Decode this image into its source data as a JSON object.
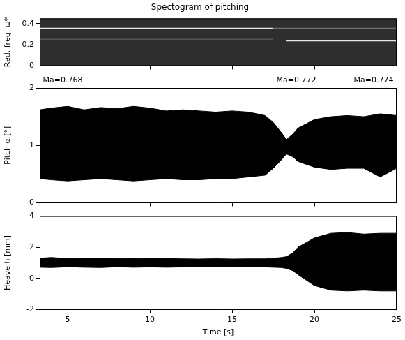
{
  "chart_data": [
    {
      "type": "line",
      "title": "Spectogram of pitching",
      "ylabel": "Red. freq. ω*",
      "x": [
        3.3,
        17.5,
        18.3,
        25
      ],
      "series": [
        {
          "color": "#e6e6e6",
          "values": [
            0.355,
            0.355,
            null,
            null
          ]
        },
        {
          "color": "#6e6e6e",
          "values": [
            null,
            0.355,
            0.355,
            0.355
          ]
        },
        {
          "color": "#555555",
          "values": [
            0.25,
            0.25,
            null,
            null
          ]
        },
        {
          "color": "#e6e6e6",
          "values": [
            null,
            null,
            0.24,
            0.24
          ]
        }
      ],
      "xlim": [
        3.3,
        25
      ],
      "xticks": [
        5,
        10,
        15,
        20,
        25
      ],
      "ylim": [
        0,
        0.45
      ],
      "yticks": [
        0,
        0.2,
        0.4
      ],
      "grid": false,
      "tick_labels": "y"
    },
    {
      "type": "band",
      "ylabel": "Pitch α [°]",
      "annotations": [
        {
          "text": "Ma=0.768",
          "x": 4.7
        },
        {
          "text": "Ma=0.772",
          "x": 18.9
        },
        {
          "text": "Ma=0.774",
          "x": 23.6
        }
      ],
      "x": [
        3.3,
        4,
        5,
        6,
        7,
        8,
        9,
        10,
        11,
        12,
        13,
        14,
        15,
        16,
        17,
        17.5,
        18,
        18.3,
        18.7,
        19,
        20,
        21,
        22,
        23,
        24,
        25
      ],
      "series": [
        {
          "color": "#000000",
          "lower": [
            0.42,
            0.4,
            0.38,
            0.4,
            0.42,
            0.4,
            0.38,
            0.4,
            0.42,
            0.4,
            0.4,
            0.42,
            0.42,
            0.45,
            0.48,
            0.6,
            0.75,
            0.85,
            0.8,
            0.72,
            0.62,
            0.58,
            0.6,
            0.6,
            0.45,
            0.6
          ],
          "upper": [
            1.62,
            1.65,
            1.68,
            1.62,
            1.66,
            1.64,
            1.68,
            1.65,
            1.6,
            1.62,
            1.6,
            1.58,
            1.6,
            1.58,
            1.52,
            1.4,
            1.22,
            1.1,
            1.2,
            1.3,
            1.45,
            1.5,
            1.52,
            1.5,
            1.55,
            1.52
          ]
        }
      ],
      "xlim": [
        3.3,
        25
      ],
      "xticks": [
        5,
        10,
        15,
        20,
        25
      ],
      "ylim": [
        0,
        2
      ],
      "yticks": [
        0,
        1,
        2
      ],
      "grid": false,
      "tick_labels": "y"
    },
    {
      "type": "band",
      "xlabel": "Time [s]",
      "ylabel": "Heave h [mm]",
      "x": [
        3.3,
        4,
        5,
        6,
        7,
        8,
        9,
        10,
        11,
        12,
        13,
        14,
        15,
        16,
        17,
        17.5,
        18,
        18.3,
        18.7,
        19,
        20,
        21,
        22,
        23,
        24,
        25
      ],
      "series": [
        {
          "color": "#000000",
          "lower": [
            0.72,
            0.7,
            0.75,
            0.72,
            0.7,
            0.75,
            0.72,
            0.74,
            0.72,
            0.74,
            0.76,
            0.74,
            0.75,
            0.76,
            0.74,
            0.72,
            0.7,
            0.65,
            0.5,
            0.25,
            -0.45,
            -0.75,
            -0.8,
            -0.75,
            -0.8,
            -0.8
          ],
          "upper": [
            1.3,
            1.35,
            1.28,
            1.3,
            1.32,
            1.28,
            1.3,
            1.27,
            1.28,
            1.26,
            1.25,
            1.27,
            1.25,
            1.26,
            1.26,
            1.3,
            1.35,
            1.4,
            1.65,
            2.0,
            2.6,
            2.9,
            2.95,
            2.85,
            2.9,
            2.9
          ]
        }
      ],
      "xlim": [
        3.3,
        25
      ],
      "xticks": [
        5,
        10,
        15,
        20,
        25
      ],
      "ylim": [
        -2,
        4
      ],
      "yticks": [
        -2,
        0,
        2,
        4
      ],
      "grid": false
    }
  ]
}
